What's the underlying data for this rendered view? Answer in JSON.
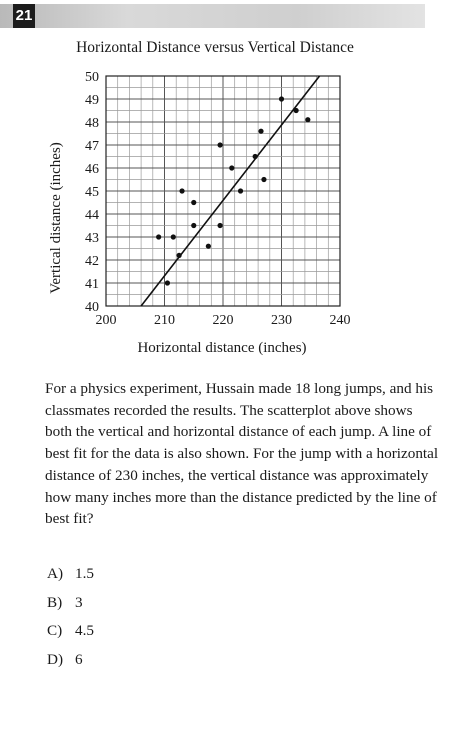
{
  "question_number": "21",
  "question_text": "For a physics experiment, Hussain made 18 long jumps, and his classmates recorded the results. The scatterplot above shows both the vertical and horizontal distance of each jump. A line of best fit for the data is also shown. For the jump with a horizontal distance of 230 inches, the vertical distance was approximately how many inches more than the distance predicted by the line of best fit?",
  "choices": [
    {
      "letter": "A)",
      "text": "1.5"
    },
    {
      "letter": "B)",
      "text": "3"
    },
    {
      "letter": "C)",
      "text": "4.5"
    },
    {
      "letter": "D)",
      "text": "6"
    }
  ],
  "chart_data": {
    "type": "scatter",
    "title": "Horizontal Distance versus Vertical Distance",
    "xlabel": "Horizontal distance (inches)",
    "ylabel": "Vertical distance (inches)",
    "xlim": [
      200,
      240
    ],
    "ylim": [
      40,
      50
    ],
    "x_ticks": [
      200,
      210,
      220,
      230,
      240
    ],
    "y_ticks": [
      40,
      41,
      42,
      43,
      44,
      45,
      46,
      47,
      48,
      49,
      50
    ],
    "grid": true,
    "points": [
      {
        "x": 209,
        "y": 43
      },
      {
        "x": 210.5,
        "y": 41
      },
      {
        "x": 211.5,
        "y": 43
      },
      {
        "x": 212.5,
        "y": 42.2
      },
      {
        "x": 213,
        "y": 45
      },
      {
        "x": 215,
        "y": 43.5
      },
      {
        "x": 215,
        "y": 44.5
      },
      {
        "x": 217.5,
        "y": 42.6
      },
      {
        "x": 219.5,
        "y": 43.5
      },
      {
        "x": 219.5,
        "y": 47
      },
      {
        "x": 221.5,
        "y": 46
      },
      {
        "x": 223,
        "y": 45
      },
      {
        "x": 225.5,
        "y": 46.5
      },
      {
        "x": 226.5,
        "y": 47.6
      },
      {
        "x": 227,
        "y": 45.5
      },
      {
        "x": 230,
        "y": 49
      },
      {
        "x": 232.5,
        "y": 48.5
      },
      {
        "x": 234.5,
        "y": 48.1
      }
    ],
    "best_fit_line": {
      "x1": 206,
      "y1": 40,
      "x2": 236.5,
      "y2": 50
    }
  }
}
